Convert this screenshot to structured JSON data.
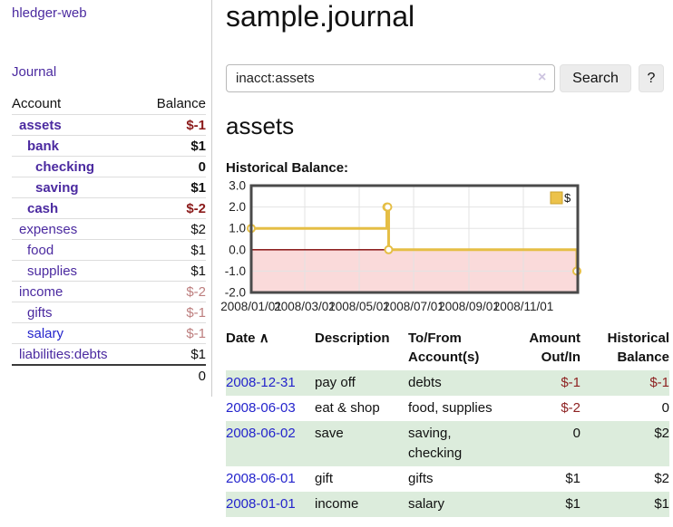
{
  "app": {
    "title": "hledger-web"
  },
  "sidebar": {
    "journal_link": "Journal",
    "table": {
      "headers": {
        "account": "Account",
        "balance": "Balance"
      },
      "accounts": [
        {
          "name": "assets",
          "level": 1,
          "bold": true,
          "balance": "$-1",
          "balance_tone": "negative-strong"
        },
        {
          "name": "bank",
          "level": 2,
          "bold": true,
          "balance": "$1",
          "balance_tone": "normal"
        },
        {
          "name": "checking",
          "level": 3,
          "bold": true,
          "balance": "0",
          "balance_tone": "normal"
        },
        {
          "name": "saving",
          "level": 3,
          "bold": true,
          "balance": "$1",
          "balance_tone": "normal"
        },
        {
          "name": "cash",
          "level": 2,
          "bold": true,
          "balance": "$-2",
          "balance_tone": "negative-strong"
        },
        {
          "name": "expenses",
          "level": 1,
          "bold": false,
          "balance": "$2",
          "balance_tone": "normal"
        },
        {
          "name": "food",
          "level": 2,
          "bold": false,
          "balance": "$1",
          "balance_tone": "normal"
        },
        {
          "name": "supplies",
          "level": 2,
          "bold": false,
          "balance": "$1",
          "balance_tone": "normal"
        },
        {
          "name": "income",
          "level": 1,
          "bold": false,
          "balance": "$-2",
          "balance_tone": "negative-soft"
        },
        {
          "name": "gifts",
          "level": 2,
          "bold": false,
          "balance": "$-1",
          "balance_tone": "negative-soft"
        },
        {
          "name": "salary",
          "level": 2,
          "bold": false,
          "balance": "$-1",
          "balance_tone": "negative-soft",
          "link_color": "blue"
        },
        {
          "name": "liabilities:debts",
          "level": 1,
          "bold": false,
          "balance": "$1",
          "balance_tone": "normal"
        }
      ],
      "total": "0"
    }
  },
  "main": {
    "title": "sample.journal",
    "search": {
      "value": "inacct:assets",
      "clear_icon": "×",
      "button_label": "Search",
      "help_label": "?"
    },
    "account_heading": "assets",
    "chart_heading": "Historical Balance:"
  },
  "chart_data": {
    "type": "line",
    "title": "Historical Balance:",
    "step": "after",
    "series": [
      {
        "name": "$",
        "x": [
          "2008-01-01",
          "2008-06-01",
          "2008-06-02",
          "2008-06-03",
          "2008-12-31"
        ],
        "values": [
          1,
          2,
          2,
          0,
          -1
        ]
      }
    ],
    "xlim": [
      "2008-01-01",
      "2009-01-01"
    ],
    "ylim": [
      -2,
      3
    ],
    "y_ticks": [
      3.0,
      2.0,
      1.0,
      0.0,
      -1.0,
      -2.0
    ],
    "x_ticks": [
      {
        "label": "2008/01/01",
        "date": "2008-01-01"
      },
      {
        "label": "2008/03/01",
        "date": "2008-03-01"
      },
      {
        "label": "2008/05/01",
        "date": "2008-05-01"
      },
      {
        "label": "2008/07/01",
        "date": "2008-07-01"
      },
      {
        "label": "2008/09/01",
        "date": "2008-09-01"
      },
      {
        "label": "2008/11/01",
        "date": "2008-11-01"
      }
    ],
    "grid": true,
    "legend_position": "top-right",
    "line_color": "#e5be45",
    "marker_fill": "#ffffff",
    "legend_swatch_color": "#ecc24b",
    "negative_region_color": "#fadada",
    "zero_line_color": "#7d0000",
    "grid_color": "#e3e3e3",
    "border_color": "#4a4a4a"
  },
  "register": {
    "headers": {
      "date": "Date",
      "sort_icon": "∧",
      "description": "Description",
      "accounts": "To/From\nAccount(s)",
      "amount": "Amount\nOut/In",
      "balance": "Historical\nBalance"
    },
    "rows": [
      {
        "date": "2008-12-31",
        "description": "pay off",
        "accounts": "debts",
        "amount": "$-1",
        "balance": "$-1"
      },
      {
        "date": "2008-06-03",
        "description": "eat & shop",
        "accounts": "food, supplies",
        "amount": "$-2",
        "balance": "0"
      },
      {
        "date": "2008-06-02",
        "description": "save",
        "accounts": "saving,\nchecking",
        "amount": "0",
        "balance": "$2"
      },
      {
        "date": "2008-06-01",
        "description": "gift",
        "accounts": "gifts",
        "amount": "$1",
        "balance": "$2"
      },
      {
        "date": "2008-01-01",
        "description": "income",
        "accounts": "salary",
        "amount": "$1",
        "balance": "$1"
      }
    ]
  },
  "colors": {
    "link_purple": "#4b2aa0",
    "link_blue": "#2424cc",
    "negative_strong": "#8b1a1a",
    "negative_soft": "#bd7e7e",
    "register_negative": "#8e2222",
    "row_green": "#dcecdc"
  }
}
